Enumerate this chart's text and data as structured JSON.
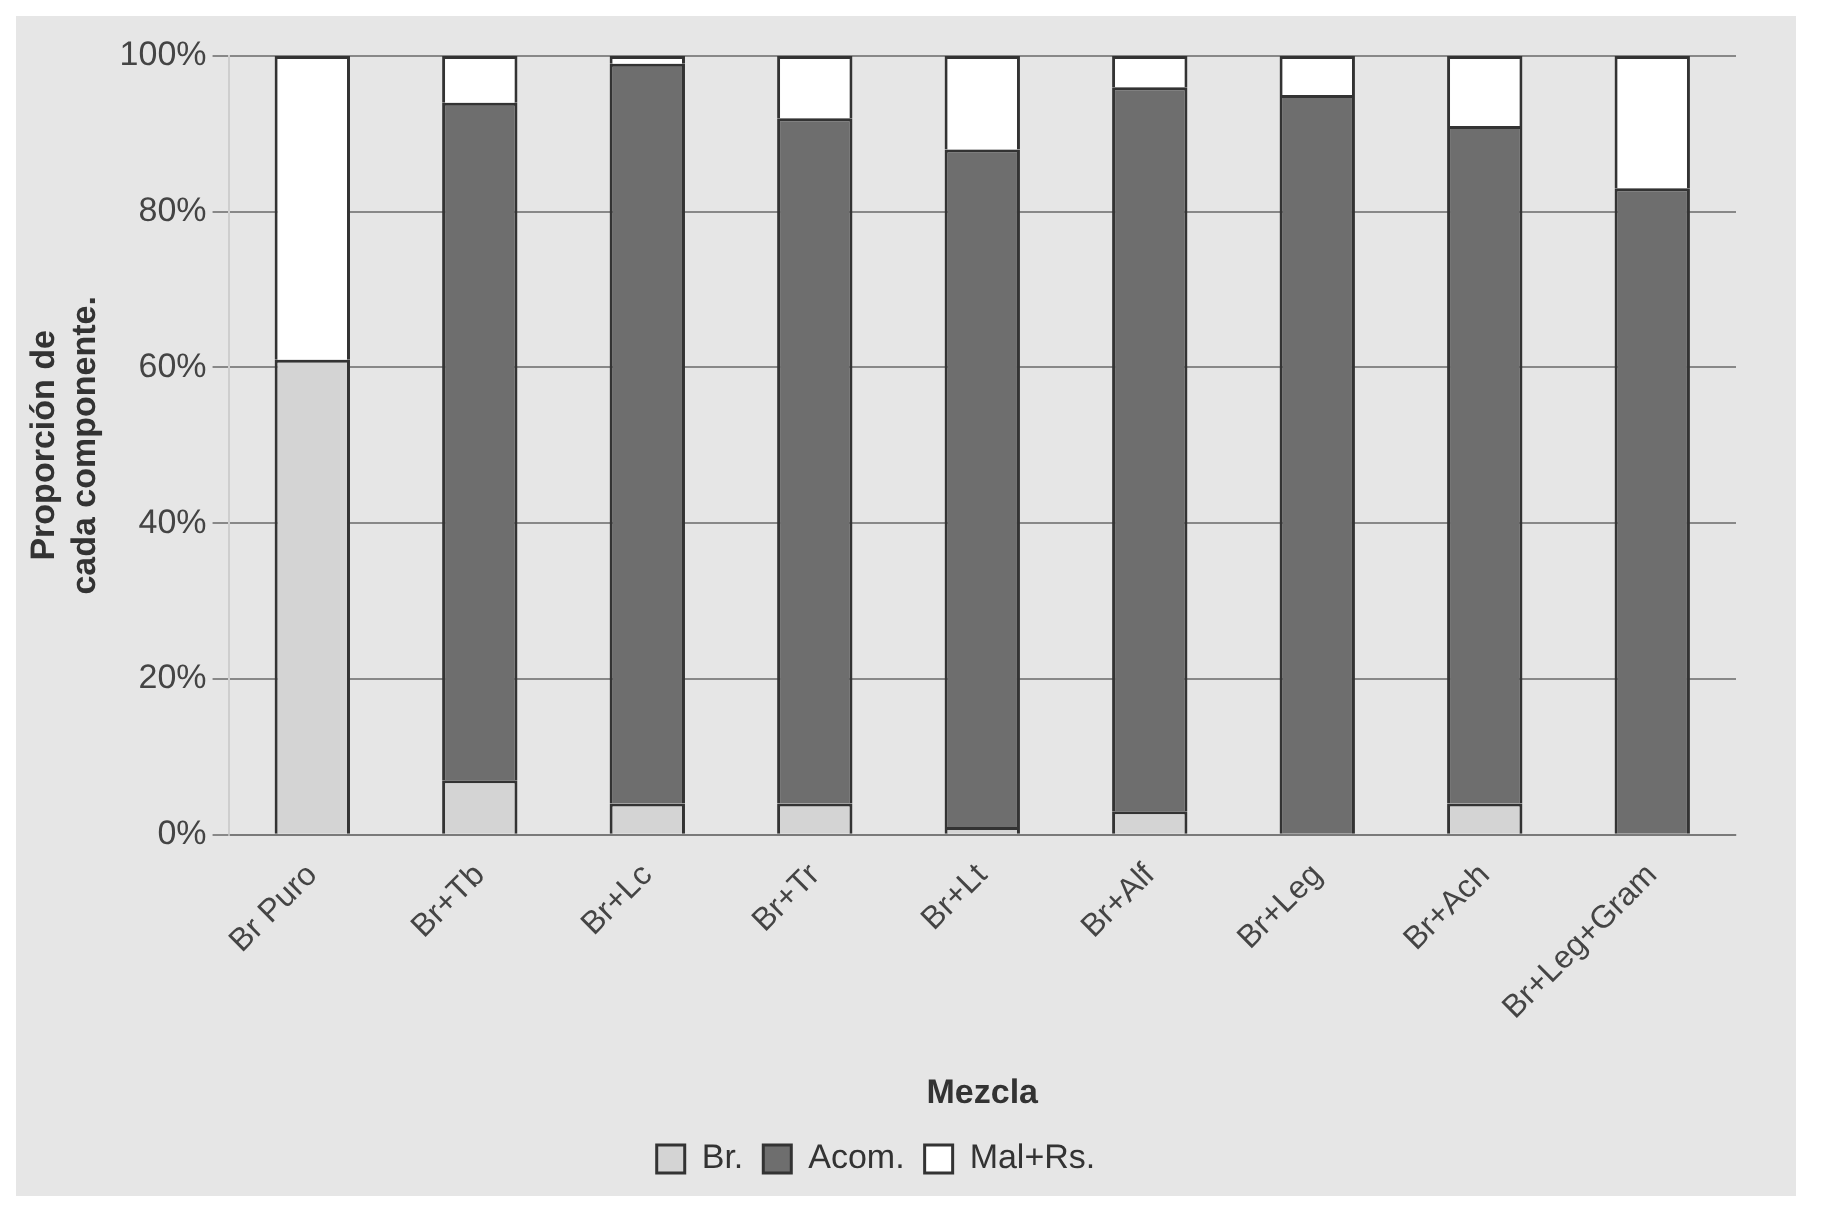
{
  "chart_data": {
    "type": "bar",
    "stacked": true,
    "xlabel": "Mezcla",
    "ylabel": "Proporción de cada componente.",
    "categories": [
      "Br Puro",
      "Br+Tb",
      "Br+Lc",
      "Br+Tr",
      "Br+Lt",
      "Br+Alf",
      "Br+Leg",
      "Br+Ach",
      "Br+Leg+Gram"
    ],
    "series": [
      {
        "name": "Br.",
        "color": "#d4d4d4",
        "values": [
          61,
          7,
          4,
          4,
          1,
          3,
          0,
          4,
          0
        ]
      },
      {
        "name": "Acom.",
        "color": "#6e6e6e",
        "values": [
          0,
          87,
          95,
          88,
          87,
          93,
          95,
          87,
          83
        ]
      },
      {
        "name": "Mal+Rs.",
        "color": "#ffffff",
        "values": [
          39,
          6,
          1,
          8,
          12,
          4,
          5,
          9,
          17
        ]
      }
    ],
    "ylim": [
      0,
      100
    ],
    "yticks": [
      {
        "value": 0,
        "label": "0%"
      },
      {
        "value": 20,
        "label": "20%"
      },
      {
        "value": 40,
        "label": "40%"
      },
      {
        "value": 60,
        "label": "60%"
      },
      {
        "value": 80,
        "label": "80%"
      },
      {
        "value": 100,
        "label": "100%"
      }
    ],
    "grid": "y",
    "legend": "bottom"
  }
}
